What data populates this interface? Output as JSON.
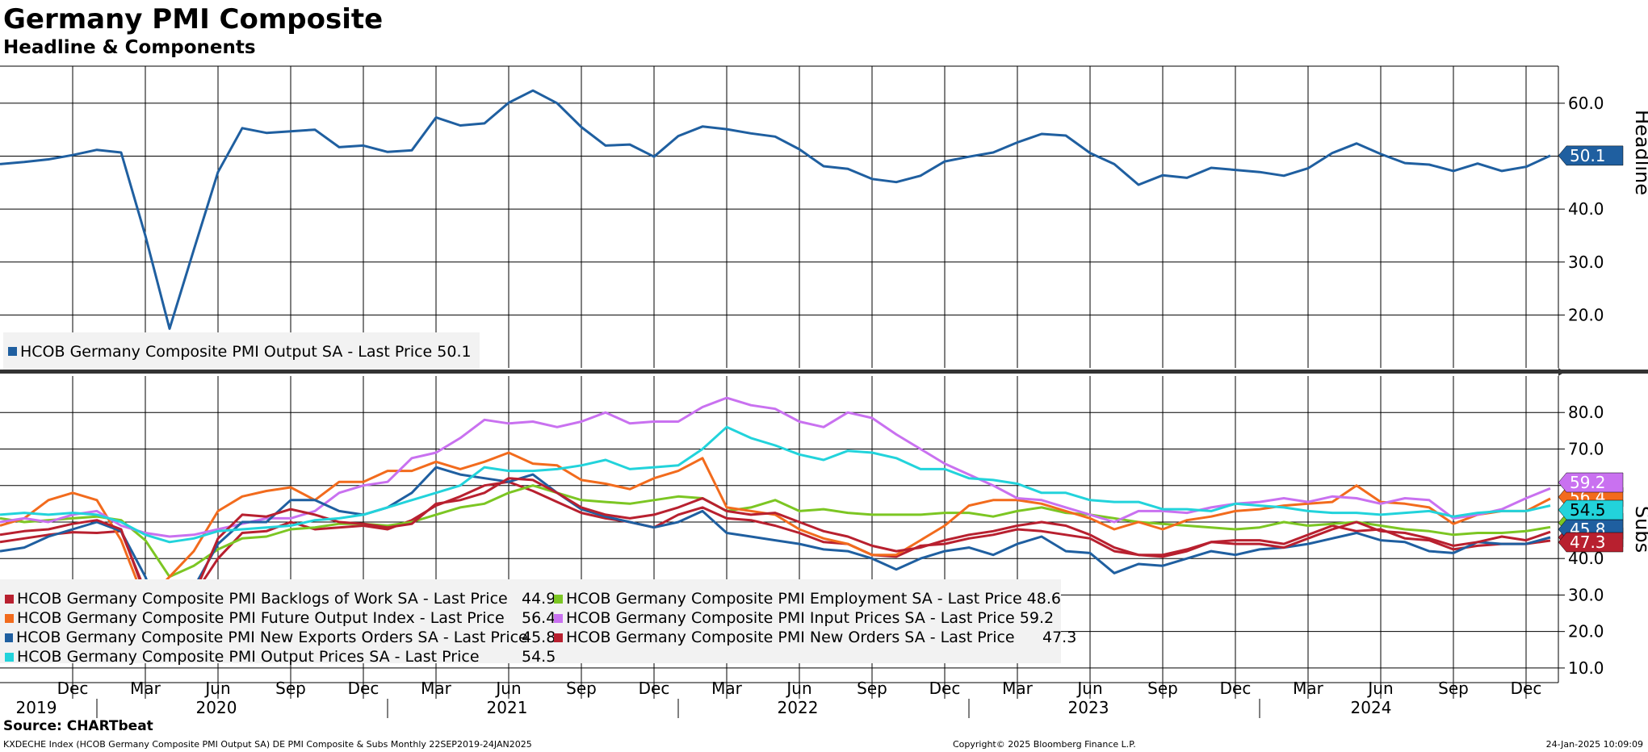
{
  "header": {
    "title": "Germany PMI Composite",
    "subtitle": "Headline & Components"
  },
  "footer": {
    "source": "Source: CHARTbeat",
    "left": "KXDECHE Index (HCOB Germany Composite PMI Output SA) DE PMI Composite & Subs  Monthly 22SEP2019-24JAN2025",
    "center": "Copyright© 2025 Bloomberg Finance L.P.",
    "right": "24-Jan-2025 10:09:09"
  },
  "x_axis": {
    "month_labels": [
      "Dec",
      "Mar",
      "Jun",
      "Sep",
      "Dec",
      "Mar",
      "Jun",
      "Sep",
      "Dec",
      "Mar",
      "Jun",
      "Sep",
      "Dec",
      "Mar",
      "Jun",
      "Sep",
      "Dec",
      "Mar",
      "Jun",
      "Sep",
      "Dec"
    ],
    "year_labels": [
      "2019",
      "2020",
      "2021",
      "2022",
      "2023",
      "2024"
    ]
  },
  "legend_top": [
    {
      "name": "HCOB Germany Composite PMI Output SA - Last Price 50.1",
      "color": "#1f5fa0"
    }
  ],
  "legend_bottom": [
    {
      "name": "HCOB Germany Composite PMI Backlogs of Work SA - Last Price",
      "value": "44.9",
      "color": "#b8202f"
    },
    {
      "name": "HCOB Germany Composite PMI Employment SA - Last Price 48.6",
      "value": "",
      "color": "#7cc623"
    },
    {
      "name": "HCOB Germany Composite PMI Future Output Index - Last Price",
      "value": "56.4",
      "color": "#f26b1d"
    },
    {
      "name": "HCOB Germany Composite PMI Input Prices SA - Last Price 59.2",
      "value": "",
      "color": "#c971f0"
    },
    {
      "name": "HCOB Germany Composite PMI New Exports Orders SA - Last Price",
      "value": "45.8",
      "color": "#1f5fa0"
    },
    {
      "name": "HCOB Germany Composite PMI New Orders SA - Last Price",
      "value": "47.3",
      "color": "#b8202f"
    },
    {
      "name": "HCOB Germany Composite PMI Output Prices SA - Last Price",
      "value": "54.5",
      "color": "#22d3db"
    }
  ],
  "chart_data": [
    {
      "type": "line",
      "panel": "Headline",
      "axis_label": "Headline",
      "ylim": [
        10,
        67
      ],
      "yticks": [
        20.0,
        30.0,
        40.0,
        50.0,
        60.0
      ],
      "ytick_labels": [
        "20.0",
        "30.0",
        "40.0",
        "50.0",
        "60.0"
      ],
      "x": [
        "2019-09",
        "2019-10",
        "2019-11",
        "2019-12",
        "2020-01",
        "2020-02",
        "2020-03",
        "2020-04",
        "2020-05",
        "2020-06",
        "2020-07",
        "2020-08",
        "2020-09",
        "2020-10",
        "2020-11",
        "2020-12",
        "2021-01",
        "2021-02",
        "2021-03",
        "2021-04",
        "2021-05",
        "2021-06",
        "2021-07",
        "2021-08",
        "2021-09",
        "2021-10",
        "2021-11",
        "2021-12",
        "2022-01",
        "2022-02",
        "2022-03",
        "2022-04",
        "2022-05",
        "2022-06",
        "2022-07",
        "2022-08",
        "2022-09",
        "2022-10",
        "2022-11",
        "2022-12",
        "2023-01",
        "2023-02",
        "2023-03",
        "2023-04",
        "2023-05",
        "2023-06",
        "2023-07",
        "2023-08",
        "2023-09",
        "2023-10",
        "2023-11",
        "2023-12",
        "2024-01",
        "2024-02",
        "2024-03",
        "2024-04",
        "2024-05",
        "2024-06",
        "2024-07",
        "2024-08",
        "2024-09",
        "2024-10",
        "2024-11",
        "2024-12",
        "2025-01"
      ],
      "series": [
        {
          "name": "HCOB Germany Composite PMI Output SA",
          "color": "#1f5fa0",
          "last_label": "50.1",
          "values": [
            48.5,
            48.9,
            49.4,
            50.2,
            51.2,
            50.7,
            35.0,
            17.4,
            32.3,
            47.0,
            55.3,
            54.4,
            54.7,
            55.0,
            51.7,
            52.0,
            50.8,
            51.1,
            57.3,
            55.8,
            56.2,
            60.1,
            62.4,
            60.0,
            55.5,
            52.0,
            52.2,
            49.9,
            53.8,
            55.6,
            55.1,
            54.3,
            53.7,
            51.3,
            48.1,
            47.6,
            45.7,
            45.1,
            46.3,
            49.0,
            49.9,
            50.7,
            52.6,
            54.2,
            53.9,
            50.6,
            48.5,
            44.6,
            46.4,
            45.9,
            47.8,
            47.4,
            47.0,
            46.3,
            47.7,
            50.6,
            52.4,
            50.4,
            48.7,
            48.4,
            47.2,
            48.6,
            47.2,
            48.0,
            50.1
          ]
        }
      ]
    },
    {
      "type": "line",
      "panel": "Subs",
      "axis_label": "Subs",
      "ylim": [
        6,
        90
      ],
      "yticks": [
        10.0,
        20.0,
        30.0,
        40.0,
        50.0,
        60.0,
        70.0,
        80.0
      ],
      "ytick_labels": [
        "10.0",
        "20.0",
        "30.0",
        "40.0",
        "50.0",
        "60.0",
        "70.0",
        "80.0"
      ],
      "x": [
        "2019-09",
        "2019-10",
        "2019-11",
        "2019-12",
        "2020-01",
        "2020-02",
        "2020-03",
        "2020-04",
        "2020-05",
        "2020-06",
        "2020-07",
        "2020-08",
        "2020-09",
        "2020-10",
        "2020-11",
        "2020-12",
        "2021-01",
        "2021-02",
        "2021-03",
        "2021-04",
        "2021-05",
        "2021-06",
        "2021-07",
        "2021-08",
        "2021-09",
        "2021-10",
        "2021-11",
        "2021-12",
        "2022-01",
        "2022-02",
        "2022-03",
        "2022-04",
        "2022-05",
        "2022-06",
        "2022-07",
        "2022-08",
        "2022-09",
        "2022-10",
        "2022-11",
        "2022-12",
        "2023-01",
        "2023-02",
        "2023-03",
        "2023-04",
        "2023-05",
        "2023-06",
        "2023-07",
        "2023-08",
        "2023-09",
        "2023-10",
        "2023-11",
        "2023-12",
        "2024-01",
        "2024-02",
        "2024-03",
        "2024-04",
        "2024-05",
        "2024-06",
        "2024-07",
        "2024-08",
        "2024-09",
        "2024-10",
        "2024-11",
        "2024-12",
        "2025-01"
      ],
      "series": [
        {
          "name": "HCOB Germany Composite PMI Backlogs of Work SA",
          "color": "#b8202f",
          "last_label": "44.9",
          "values": [
            44.5,
            45.5,
            46.5,
            47.2,
            47.0,
            47.5,
            31.0,
            20.5,
            30.0,
            40.0,
            47.0,
            47.5,
            50.0,
            48.0,
            48.5,
            49.0,
            48.0,
            50.5,
            54.5,
            57.0,
            60.0,
            61.0,
            58.5,
            55.5,
            52.5,
            51.0,
            50.0,
            48.5,
            52.0,
            54.0,
            51.0,
            50.5,
            49.0,
            47.0,
            44.5,
            44.0,
            41.0,
            40.5,
            43.5,
            44.0,
            45.5,
            46.5,
            48.0,
            47.5,
            46.5,
            45.5,
            42.0,
            41.0,
            40.5,
            42.0,
            44.5,
            45.0,
            45.0,
            44.0,
            46.5,
            49.0,
            47.5,
            48.0,
            45.5,
            45.0,
            42.5,
            43.5,
            44.0,
            44.0,
            44.9
          ]
        },
        {
          "name": "HCOB Germany Composite PMI Employment SA",
          "color": "#7cc623",
          "last_label": "48.6",
          "values": [
            51.0,
            50.0,
            50.5,
            51.0,
            51.5,
            50.5,
            45.0,
            35.0,
            38.0,
            42.5,
            45.5,
            46.0,
            48.0,
            48.5,
            49.5,
            49.5,
            49.0,
            50.0,
            52.0,
            54.0,
            55.0,
            58.0,
            60.0,
            58.0,
            56.0,
            55.5,
            55.0,
            56.0,
            57.0,
            56.5,
            53.0,
            54.0,
            56.0,
            53.0,
            53.5,
            52.5,
            52.0,
            52.0,
            52.0,
            52.5,
            52.5,
            51.5,
            53.0,
            54.0,
            52.5,
            52.0,
            51.0,
            50.0,
            49.5,
            49.0,
            48.5,
            48.0,
            48.5,
            50.0,
            49.0,
            49.5,
            50.0,
            49.0,
            48.0,
            47.5,
            46.5,
            47.0,
            47.0,
            47.5,
            48.6
          ]
        },
        {
          "name": "HCOB Germany Composite PMI Future Output Index",
          "color": "#f26b1d",
          "last_label": "56.4",
          "values": [
            49.0,
            51.0,
            56.0,
            58.0,
            56.0,
            45.0,
            28.0,
            35.0,
            42.0,
            53.0,
            57.0,
            58.5,
            59.5,
            56.0,
            61.0,
            61.0,
            64.0,
            64.0,
            66.5,
            64.5,
            66.5,
            69.0,
            66.0,
            65.5,
            61.5,
            60.5,
            59.0,
            62.0,
            64.0,
            67.5,
            54.0,
            53.0,
            52.0,
            48.0,
            45.5,
            44.0,
            41.0,
            41.0,
            45.0,
            49.0,
            54.5,
            56.0,
            56.0,
            55.0,
            53.0,
            51.0,
            48.0,
            50.0,
            48.0,
            50.5,
            51.5,
            53.0,
            53.5,
            54.5,
            55.0,
            55.5,
            60.0,
            55.5,
            55.0,
            54.0,
            49.5,
            52.0,
            53.0,
            53.0,
            56.4
          ]
        },
        {
          "name": "HCOB Germany Composite PMI Input Prices SA",
          "color": "#c971f0",
          "last_label": "59.2",
          "values": [
            50.0,
            51.0,
            50.0,
            52.0,
            53.0,
            49.0,
            47.0,
            46.0,
            46.5,
            48.0,
            49.5,
            51.0,
            51.0,
            53.0,
            58.0,
            60.0,
            61.0,
            67.5,
            69.0,
            73.0,
            78.0,
            77.0,
            77.5,
            76.0,
            77.5,
            80.0,
            77.0,
            77.5,
            77.5,
            81.5,
            84.0,
            82.0,
            81.0,
            77.5,
            76.0,
            80.0,
            78.5,
            74.0,
            70.0,
            66.0,
            63.0,
            60.0,
            56.5,
            56.0,
            54.0,
            52.0,
            50.0,
            53.0,
            53.0,
            52.5,
            54.0,
            55.0,
            55.5,
            56.5,
            55.5,
            57.0,
            56.5,
            55.0,
            56.5,
            56.0,
            51.0,
            52.0,
            53.5,
            56.5,
            59.2
          ]
        },
        {
          "name": "HCOB Germany Composite PMI New Exports Orders SA",
          "color": "#1f5fa0",
          "last_label": "45.8",
          "values": [
            42.0,
            43.0,
            46.0,
            48.0,
            50.0,
            47.5,
            35.0,
            18.0,
            32.0,
            44.0,
            50.0,
            50.0,
            56.0,
            56.0,
            53.0,
            52.0,
            54.0,
            58.0,
            65.0,
            63.0,
            62.0,
            61.0,
            63.0,
            58.0,
            53.5,
            51.5,
            50.0,
            48.5,
            50.0,
            53.0,
            47.0,
            46.0,
            45.0,
            44.0,
            42.5,
            42.0,
            40.0,
            37.0,
            40.0,
            42.0,
            43.0,
            41.0,
            44.0,
            46.0,
            42.0,
            41.5,
            36.0,
            38.5,
            38.0,
            40.0,
            42.0,
            41.0,
            42.5,
            43.0,
            44.0,
            45.5,
            47.0,
            45.0,
            44.5,
            42.0,
            41.5,
            44.5,
            44.0,
            44.0,
            45.8
          ]
        },
        {
          "name": "HCOB Germany Composite PMI New Orders SA",
          "color": "#b8202f",
          "last_label": "47.3",
          "values": [
            46.5,
            47.5,
            48.0,
            49.5,
            50.5,
            48.0,
            30.0,
            20.0,
            30.0,
            45.5,
            52.0,
            51.5,
            53.5,
            52.0,
            50.0,
            49.5,
            48.5,
            49.5,
            55.0,
            56.0,
            58.0,
            62.0,
            61.5,
            58.0,
            54.0,
            52.0,
            51.0,
            52.0,
            54.0,
            56.5,
            53.0,
            52.0,
            52.5,
            50.0,
            47.5,
            46.0,
            43.5,
            42.0,
            43.0,
            45.0,
            46.5,
            47.5,
            49.0,
            50.0,
            49.0,
            46.5,
            43.0,
            41.0,
            41.0,
            42.5,
            44.5,
            44.0,
            44.0,
            43.0,
            45.5,
            48.0,
            50.0,
            47.5,
            47.0,
            45.5,
            43.5,
            44.5,
            46.0,
            45.0,
            47.3
          ]
        },
        {
          "name": "HCOB Germany Composite PMI Output Prices SA",
          "color": "#22d3db",
          "last_label": "54.5",
          "values": [
            52.0,
            52.5,
            52.0,
            52.5,
            52.0,
            50.0,
            46.5,
            44.5,
            45.5,
            47.5,
            48.0,
            48.5,
            49.0,
            50.5,
            51.0,
            52.0,
            54.0,
            56.0,
            58.0,
            60.0,
            65.0,
            64.0,
            64.0,
            64.5,
            65.5,
            67.0,
            64.5,
            65.0,
            65.5,
            70.0,
            76.0,
            73.0,
            71.0,
            68.5,
            67.0,
            69.5,
            69.0,
            67.5,
            64.5,
            64.5,
            62.0,
            61.5,
            60.5,
            58.0,
            58.0,
            56.0,
            55.5,
            55.5,
            53.5,
            53.5,
            53.0,
            55.0,
            54.5,
            54.0,
            53.0,
            52.5,
            52.5,
            52.0,
            52.5,
            53.0,
            51.5,
            52.5,
            53.0,
            53.0,
            54.5
          ]
        }
      ]
    }
  ]
}
